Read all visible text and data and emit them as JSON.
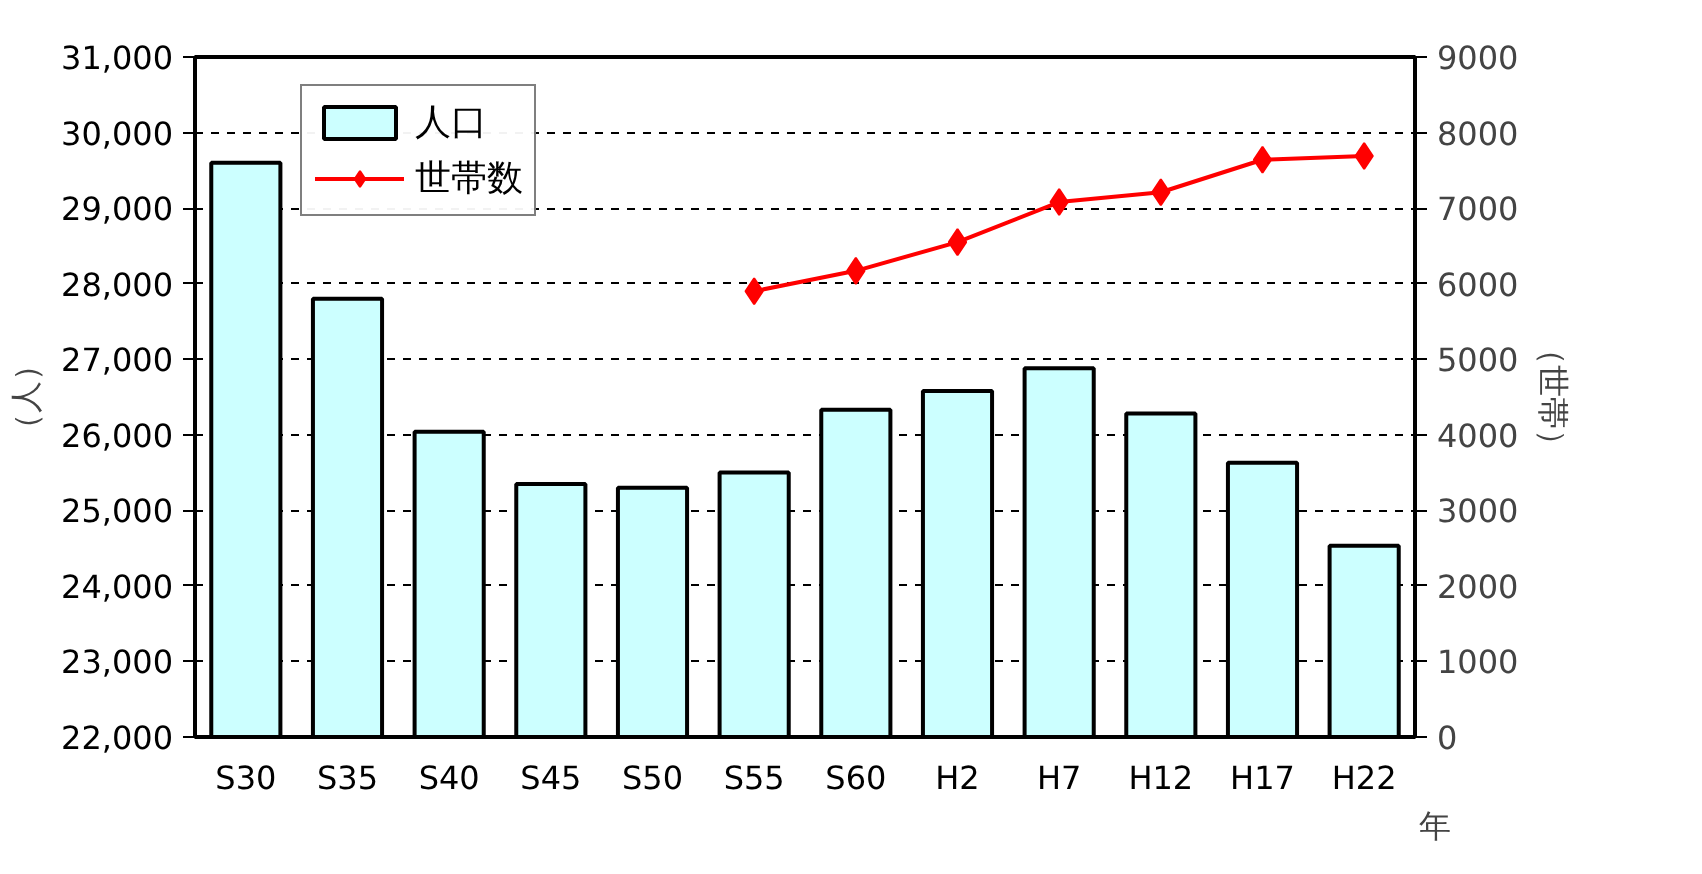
{
  "chart_data": {
    "type": "bar",
    "categories": [
      "S30",
      "S35",
      "S40",
      "S45",
      "S50",
      "S55",
      "S60",
      "H2",
      "H7",
      "H12",
      "H17",
      "H22"
    ],
    "series": [
      {
        "name": "人口",
        "color": "#ccffff",
        "values": [
          29600,
          27800,
          26040,
          25350,
          25300,
          25500,
          26330,
          26580,
          26880,
          26280,
          25630,
          24530
        ]
      },
      {
        "name": "世帯数",
        "type": "line",
        "axis": "y2",
        "color": "#ff0000",
        "marker": "diamond",
        "values": [
          null,
          null,
          null,
          null,
          null,
          5900,
          6170,
          6550,
          7080,
          7210,
          7640,
          7690
        ]
      }
    ],
    "ylabel": "（人）",
    "y2label": "（世帯）",
    "xlabel": "年",
    "ylim": [
      22000,
      31000
    ],
    "yticks": [
      {
        "value": 22000,
        "label": "22,000"
      },
      {
        "value": 23000,
        "label": "23,000"
      },
      {
        "value": 24000,
        "label": "24,000"
      },
      {
        "value": 25000,
        "label": "25,000"
      },
      {
        "value": 26000,
        "label": "26,000"
      },
      {
        "value": 27000,
        "label": "27,000"
      },
      {
        "value": 28000,
        "label": "28,000"
      },
      {
        "value": 29000,
        "label": "29,000"
      },
      {
        "value": 30000,
        "label": "30,000"
      },
      {
        "value": 31000,
        "label": "31,000"
      }
    ],
    "y2lim": [
      0,
      9000
    ],
    "y2ticks": [
      0,
      1000,
      2000,
      3000,
      4000,
      5000,
      6000,
      7000,
      8000,
      9000
    ],
    "grid": "y",
    "legend": "top left"
  }
}
